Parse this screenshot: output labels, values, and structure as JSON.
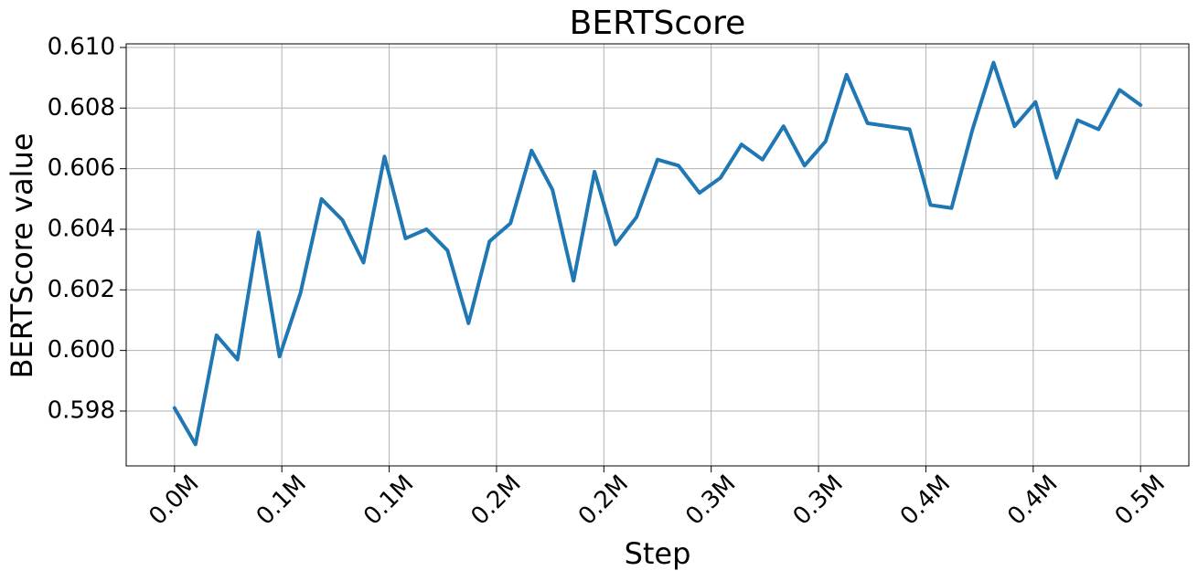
{
  "chart_data": {
    "type": "line",
    "title": "BERTScore",
    "x_label": "Step",
    "y_label": "BERTScore value",
    "x": [
      0,
      10600,
      21200,
      31800,
      42400,
      53000,
      63600,
      74200,
      84800,
      95400,
      106000,
      116600,
      127200,
      137800,
      148400,
      159000,
      169600,
      180200,
      190800,
      201400,
      212000,
      222600,
      233200,
      243800,
      254400,
      265000,
      275600,
      286200,
      296800,
      307400,
      318000,
      328600,
      339200,
      349800,
      360400,
      371000,
      381600,
      392200,
      402800,
      413400,
      424000,
      434600,
      445200,
      455800,
      466400,
      477000,
      487600
    ],
    "values": [
      0.5981,
      0.5969,
      0.6005,
      0.5997,
      0.6039,
      0.5998,
      0.6019,
      0.605,
      0.6043,
      0.6029,
      0.6064,
      0.6037,
      0.604,
      0.6033,
      0.6009,
      0.6036,
      0.6042,
      0.6066,
      0.6053,
      0.6023,
      0.6059,
      0.6035,
      0.6044,
      0.6063,
      0.6061,
      0.6052,
      0.6057,
      0.6068,
      0.6063,
      0.6074,
      0.6061,
      0.6069,
      0.6091,
      0.6075,
      0.6074,
      0.6073,
      0.6048,
      0.6047,
      0.6073,
      0.6095,
      0.6074,
      0.6082,
      0.6057,
      0.6076,
      0.6073,
      0.6086,
      0.6081
    ],
    "color": "#1f77b4",
    "xlim": [
      -24380,
      511980
    ],
    "xticks": [
      {
        "value": 0,
        "label": "0.0M"
      },
      {
        "value": 54178,
        "label": "0.1M"
      },
      {
        "value": 108356,
        "label": "0.1M"
      },
      {
        "value": 162533,
        "label": "0.2M"
      },
      {
        "value": 216711,
        "label": "0.2M"
      },
      {
        "value": 270889,
        "label": "0.3M"
      },
      {
        "value": 325067,
        "label": "0.3M"
      },
      {
        "value": 379244,
        "label": "0.4M"
      },
      {
        "value": 433422,
        "label": "0.4M"
      },
      {
        "value": 487600,
        "label": "0.5M"
      }
    ],
    "ylim": [
      0.59619,
      0.61012
    ],
    "yticks": [
      0.598,
      {
        "value": 0.6,
        "label": "0.600"
      },
      0.602,
      0.604,
      0.606,
      0.608,
      {
        "value": 0.61,
        "label": "0.610"
      }
    ],
    "grid": true
  }
}
